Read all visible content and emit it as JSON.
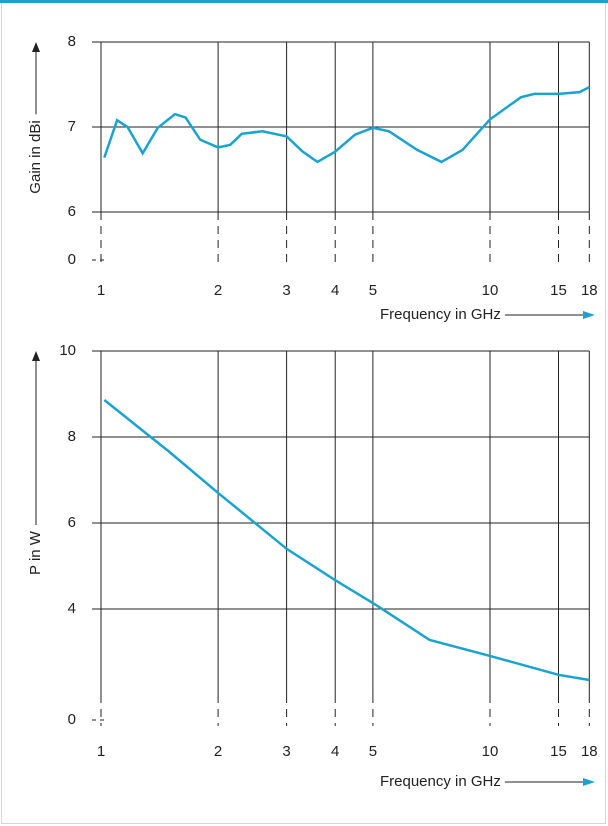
{
  "chart_data": [
    {
      "type": "line",
      "log_x": true,
      "grid": true,
      "axis_break": true,
      "ylabel": "Gain in dBi",
      "xlabel": "Frequency in GHz",
      "xlim": [
        1,
        18
      ],
      "xticks": [
        1,
        2,
        3,
        4,
        5,
        10,
        15,
        18
      ],
      "ylim": [
        6,
        8
      ],
      "yticks": [
        0,
        6,
        7,
        8
      ],
      "color": "#1aa3d0",
      "x": [
        1.02,
        1.1,
        1.17,
        1.28,
        1.4,
        1.55,
        1.65,
        1.8,
        2.0,
        2.15,
        2.3,
        2.6,
        3.0,
        3.3,
        3.6,
        4.0,
        4.5,
        5.0,
        5.5,
        6.5,
        7.5,
        8.5,
        10,
        12,
        13,
        15,
        17,
        18
      ],
      "values": [
        6.64,
        7.08,
        7.0,
        6.69,
        6.99,
        7.15,
        7.11,
        6.85,
        6.76,
        6.79,
        6.92,
        6.95,
        6.89,
        6.71,
        6.59,
        6.71,
        6.91,
        6.99,
        6.95,
        6.73,
        6.59,
        6.73,
        7.09,
        7.35,
        7.39,
        7.39,
        7.41,
        7.47
      ]
    },
    {
      "type": "line",
      "log_x": true,
      "grid": true,
      "axis_break": true,
      "ylabel": "P in W",
      "xlabel": "Frequency in GHz",
      "xlim": [
        1,
        18
      ],
      "xticks": [
        1,
        2,
        3,
        4,
        5,
        10,
        15,
        18
      ],
      "ylim": [
        2,
        10
      ],
      "yticks": [
        0,
        4,
        6,
        8,
        10
      ],
      "color": "#1aa3d0",
      "x": [
        1.02,
        1.5,
        2,
        3,
        4,
        5,
        7,
        10,
        15,
        18
      ],
      "values": [
        8.86,
        7.65,
        6.7,
        5.4,
        4.67,
        4.14,
        3.28,
        2.91,
        2.47,
        2.35
      ]
    }
  ]
}
